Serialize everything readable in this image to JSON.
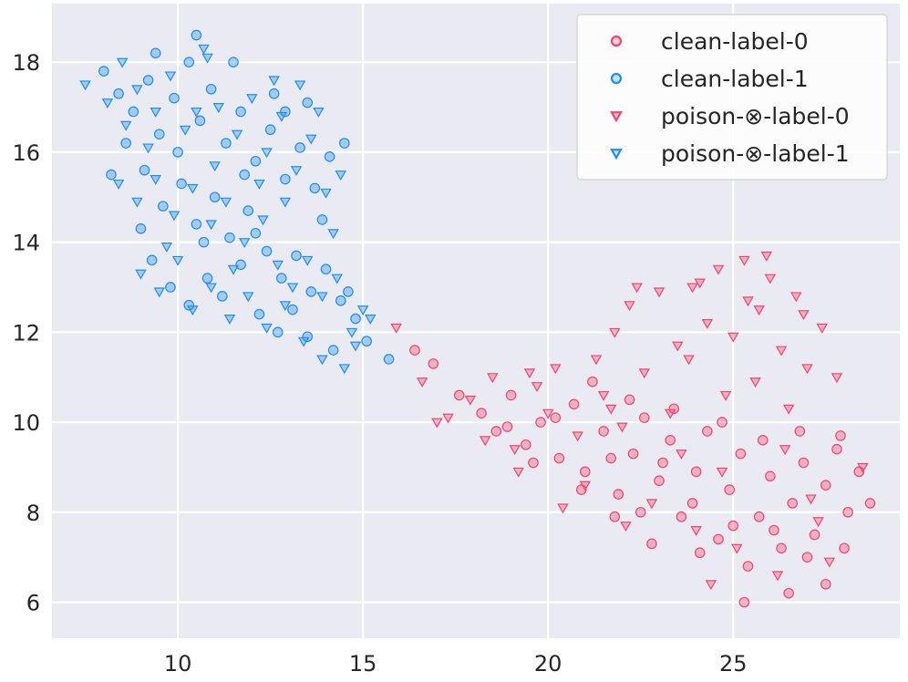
{
  "chart_data": {
    "type": "scatter",
    "title": "",
    "xlabel": "",
    "ylabel": "",
    "xlim": [
      6.6,
      29.5
    ],
    "ylim": [
      5.2,
      19.3
    ],
    "xticks": [
      10,
      15,
      20,
      25
    ],
    "yticks": [
      6,
      8,
      10,
      12,
      14,
      16,
      18
    ],
    "grid": true,
    "legend_position": "top-right",
    "colors": {
      "label-0": "#f5456d",
      "label-1": "#1f8ef5",
      "background": "#eaeaf2",
      "grid": "#ffffff"
    },
    "series": [
      {
        "name": "clean-label-0",
        "marker": "circle",
        "color": "#f5456d",
        "points": [
          [
            16.4,
            11.6
          ],
          [
            16.9,
            11.3
          ],
          [
            17.6,
            10.6
          ],
          [
            18.2,
            10.2
          ],
          [
            18.6,
            9.8
          ],
          [
            19.0,
            10.6
          ],
          [
            19.4,
            9.5
          ],
          [
            19.8,
            10.0
          ],
          [
            20.3,
            9.2
          ],
          [
            20.7,
            10.4
          ],
          [
            21.0,
            8.9
          ],
          [
            21.5,
            9.8
          ],
          [
            21.9,
            8.4
          ],
          [
            22.3,
            9.3
          ],
          [
            22.6,
            10.1
          ],
          [
            23.0,
            8.7
          ],
          [
            23.3,
            9.6
          ],
          [
            23.6,
            7.9
          ],
          [
            24.0,
            8.9
          ],
          [
            24.3,
            9.8
          ],
          [
            24.6,
            7.4
          ],
          [
            24.9,
            8.5
          ],
          [
            25.2,
            9.3
          ],
          [
            25.4,
            6.8
          ],
          [
            25.7,
            7.9
          ],
          [
            26.0,
            8.8
          ],
          [
            26.3,
            7.2
          ],
          [
            26.6,
            8.2
          ],
          [
            26.9,
            9.1
          ],
          [
            27.2,
            7.5
          ],
          [
            27.5,
            8.6
          ],
          [
            27.8,
            9.4
          ],
          [
            28.1,
            8.0
          ],
          [
            28.4,
            8.9
          ],
          [
            28.7,
            8.2
          ],
          [
            25.3,
            6.0
          ],
          [
            26.5,
            6.2
          ],
          [
            27.5,
            6.4
          ],
          [
            24.1,
            7.1
          ],
          [
            22.8,
            7.3
          ],
          [
            21.8,
            7.9
          ],
          [
            20.9,
            8.5
          ],
          [
            19.6,
            9.1
          ],
          [
            23.4,
            10.3
          ],
          [
            22.2,
            10.5
          ],
          [
            21.2,
            10.9
          ],
          [
            26.8,
            9.8
          ],
          [
            27.9,
            9.7
          ],
          [
            25.8,
            9.6
          ],
          [
            24.7,
            10.0
          ],
          [
            23.9,
            8.2
          ],
          [
            22.5,
            8.0
          ],
          [
            26.1,
            7.6
          ],
          [
            27.0,
            7.0
          ],
          [
            28.0,
            7.2
          ],
          [
            25.0,
            7.7
          ],
          [
            23.1,
            9.1
          ],
          [
            20.2,
            10.1
          ],
          [
            18.9,
            9.9
          ],
          [
            21.7,
            9.2
          ]
        ]
      },
      {
        "name": "clean-label-1",
        "marker": "circle",
        "color": "#1f8ef5",
        "points": [
          [
            8.0,
            17.8
          ],
          [
            8.4,
            17.3
          ],
          [
            8.8,
            16.9
          ],
          [
            9.2,
            17.6
          ],
          [
            9.5,
            16.4
          ],
          [
            9.9,
            17.2
          ],
          [
            10.3,
            18.0
          ],
          [
            10.6,
            16.7
          ],
          [
            10.9,
            17.4
          ],
          [
            11.3,
            16.2
          ],
          [
            11.7,
            16.9
          ],
          [
            12.1,
            15.8
          ],
          [
            12.5,
            16.5
          ],
          [
            12.9,
            15.4
          ],
          [
            13.3,
            16.1
          ],
          [
            13.7,
            15.2
          ],
          [
            14.1,
            15.9
          ],
          [
            9.1,
            15.6
          ],
          [
            9.6,
            14.8
          ],
          [
            10.1,
            15.3
          ],
          [
            10.5,
            14.4
          ],
          [
            11.0,
            15.0
          ],
          [
            11.4,
            14.1
          ],
          [
            11.9,
            14.7
          ],
          [
            12.4,
            13.8
          ],
          [
            12.8,
            13.2
          ],
          [
            13.2,
            13.7
          ],
          [
            13.6,
            12.9
          ],
          [
            14.0,
            13.4
          ],
          [
            14.4,
            12.7
          ],
          [
            14.8,
            12.3
          ],
          [
            15.1,
            11.8
          ],
          [
            9.3,
            13.6
          ],
          [
            9.8,
            13.0
          ],
          [
            10.3,
            12.6
          ],
          [
            10.8,
            13.2
          ],
          [
            11.2,
            12.8
          ],
          [
            11.7,
            13.5
          ],
          [
            12.2,
            12.4
          ],
          [
            12.7,
            12.0
          ],
          [
            13.1,
            12.5
          ],
          [
            13.5,
            11.9
          ],
          [
            14.2,
            11.6
          ],
          [
            14.6,
            12.9
          ],
          [
            10.5,
            18.6
          ],
          [
            8.6,
            16.2
          ],
          [
            9.4,
            18.2
          ],
          [
            11.5,
            18.0
          ],
          [
            12.6,
            17.3
          ],
          [
            13.5,
            17.1
          ],
          [
            8.2,
            15.5
          ],
          [
            10.0,
            16.0
          ],
          [
            11.8,
            15.5
          ],
          [
            13.9,
            14.5
          ],
          [
            12.1,
            14.2
          ],
          [
            14.5,
            16.2
          ],
          [
            15.7,
            11.4
          ],
          [
            10.7,
            14.0
          ],
          [
            12.9,
            16.9
          ],
          [
            9.0,
            14.3
          ]
        ]
      },
      {
        "name": "poison-⊗-label-0",
        "marker": "triangle-down",
        "color": "#f5456d",
        "points": [
          [
            15.9,
            12.1
          ],
          [
            16.6,
            10.9
          ],
          [
            17.3,
            10.1
          ],
          [
            17.9,
            10.5
          ],
          [
            18.5,
            11.0
          ],
          [
            19.1,
            9.4
          ],
          [
            19.7,
            10.8
          ],
          [
            20.2,
            11.2
          ],
          [
            20.8,
            9.7
          ],
          [
            21.3,
            11.4
          ],
          [
            21.8,
            12.0
          ],
          [
            22.2,
            12.6
          ],
          [
            22.6,
            11.1
          ],
          [
            23.0,
            12.9
          ],
          [
            23.5,
            11.7
          ],
          [
            23.9,
            13.0
          ],
          [
            24.3,
            12.2
          ],
          [
            24.6,
            13.4
          ],
          [
            25.0,
            11.9
          ],
          [
            25.3,
            13.6
          ],
          [
            25.7,
            12.5
          ],
          [
            26.0,
            13.2
          ],
          [
            26.3,
            11.6
          ],
          [
            26.7,
            12.8
          ],
          [
            27.0,
            11.2
          ],
          [
            27.4,
            12.1
          ],
          [
            27.8,
            11.0
          ],
          [
            24.8,
            10.6
          ],
          [
            25.6,
            10.9
          ],
          [
            26.5,
            10.3
          ],
          [
            23.3,
            10.2
          ],
          [
            22.0,
            9.9
          ],
          [
            21.0,
            8.6
          ],
          [
            20.4,
            8.1
          ],
          [
            19.2,
            8.9
          ],
          [
            22.8,
            8.2
          ],
          [
            24.0,
            7.6
          ],
          [
            25.1,
            7.2
          ],
          [
            26.2,
            6.6
          ],
          [
            27.3,
            7.8
          ],
          [
            28.5,
            9.0
          ],
          [
            27.1,
            8.3
          ],
          [
            24.4,
            6.4
          ],
          [
            23.6,
            9.3
          ],
          [
            21.5,
            10.6
          ],
          [
            20.0,
            10.2
          ],
          [
            18.3,
            9.6
          ],
          [
            25.9,
            13.7
          ],
          [
            24.1,
            13.1
          ],
          [
            22.4,
            13.0
          ],
          [
            26.9,
            12.4
          ],
          [
            23.8,
            11.4
          ],
          [
            25.4,
            12.7
          ],
          [
            21.7,
            10.3
          ],
          [
            26.4,
            9.4
          ],
          [
            24.7,
            8.9
          ],
          [
            22.1,
            7.7
          ],
          [
            27.6,
            6.9
          ],
          [
            17.0,
            10.0
          ],
          [
            19.5,
            11.1
          ]
        ]
      },
      {
        "name": "poison-⊗-label-1",
        "marker": "triangle-down",
        "color": "#1f8ef5",
        "points": [
          [
            7.5,
            17.5
          ],
          [
            8.1,
            17.1
          ],
          [
            8.5,
            18.0
          ],
          [
            8.9,
            17.4
          ],
          [
            9.4,
            16.9
          ],
          [
            9.8,
            17.7
          ],
          [
            10.2,
            16.5
          ],
          [
            10.7,
            18.3
          ],
          [
            11.1,
            17.0
          ],
          [
            11.6,
            16.4
          ],
          [
            12.0,
            17.2
          ],
          [
            12.4,
            16.0
          ],
          [
            12.8,
            16.8
          ],
          [
            13.2,
            15.6
          ],
          [
            13.6,
            16.3
          ],
          [
            14.0,
            15.1
          ],
          [
            14.4,
            15.5
          ],
          [
            8.4,
            15.3
          ],
          [
            8.9,
            14.9
          ],
          [
            9.4,
            15.4
          ],
          [
            9.9,
            14.6
          ],
          [
            10.4,
            15.2
          ],
          [
            10.9,
            14.4
          ],
          [
            11.3,
            14.9
          ],
          [
            11.8,
            14.0
          ],
          [
            12.3,
            14.5
          ],
          [
            12.7,
            13.5
          ],
          [
            13.1,
            13.0
          ],
          [
            13.5,
            13.6
          ],
          [
            13.9,
            12.8
          ],
          [
            14.3,
            13.2
          ],
          [
            14.7,
            12.0
          ],
          [
            15.0,
            12.5
          ],
          [
            9.0,
            13.3
          ],
          [
            9.5,
            12.9
          ],
          [
            10.0,
            13.6
          ],
          [
            10.4,
            12.5
          ],
          [
            10.9,
            13.0
          ],
          [
            11.4,
            12.3
          ],
          [
            11.9,
            12.8
          ],
          [
            12.4,
            12.1
          ],
          [
            12.9,
            12.6
          ],
          [
            13.4,
            11.8
          ],
          [
            13.9,
            11.4
          ],
          [
            14.5,
            11.2
          ],
          [
            15.2,
            12.3
          ],
          [
            10.8,
            18.1
          ],
          [
            12.6,
            17.6
          ],
          [
            13.8,
            16.9
          ],
          [
            9.2,
            16.1
          ],
          [
            11.0,
            15.7
          ],
          [
            12.9,
            14.9
          ],
          [
            14.2,
            14.2
          ],
          [
            8.6,
            16.6
          ],
          [
            10.5,
            16.9
          ],
          [
            12.2,
            15.3
          ],
          [
            13.3,
            17.5
          ],
          [
            9.7,
            13.9
          ],
          [
            11.5,
            13.4
          ],
          [
            14.8,
            11.7
          ]
        ]
      }
    ]
  }
}
